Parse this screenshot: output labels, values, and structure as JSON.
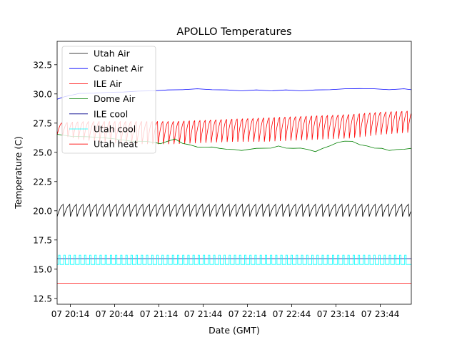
{
  "chart_data": {
    "type": "line",
    "title": "APOLLO Temperatures",
    "xlabel": "Date (GMT)",
    "ylabel": "Temperature (C)",
    "x_unit": "minutes since 07 20:00 GMT",
    "xlim": [
      5,
      245
    ],
    "ylim": [
      12.0,
      34.5
    ],
    "x_ticks": [
      {
        "value": 14,
        "label": "07 20:14"
      },
      {
        "value": 44,
        "label": "07 20:44"
      },
      {
        "value": 74,
        "label": "07 21:14"
      },
      {
        "value": 104,
        "label": "07 21:44"
      },
      {
        "value": 134,
        "label": "07 22:14"
      },
      {
        "value": 164,
        "label": "07 22:44"
      },
      {
        "value": 194,
        "label": "07 23:14"
      },
      {
        "value": 224,
        "label": "07 23:44"
      }
    ],
    "y_ticks": [
      {
        "value": 12.5,
        "label": "12.5"
      },
      {
        "value": 15.0,
        "label": "15.0"
      },
      {
        "value": 17.5,
        "label": "17.5"
      },
      {
        "value": 20.0,
        "label": "20.0"
      },
      {
        "value": 22.5,
        "label": "22.5"
      },
      {
        "value": 25.0,
        "label": "25.0"
      },
      {
        "value": 27.5,
        "label": "27.5"
      },
      {
        "value": 30.0,
        "label": "30.0"
      },
      {
        "value": 32.5,
        "label": "32.5"
      }
    ],
    "grid": false,
    "legend_position": "top-left",
    "series": [
      {
        "name": "Utah Air",
        "color": "#000000",
        "pattern": "sawtooth",
        "base": 20.5,
        "drop": 1.0,
        "period_min": 4.5,
        "x_start": 5,
        "x_end": 245
      },
      {
        "name": "Cabinet Air",
        "color": "#0000ff",
        "pattern": "points",
        "x": [
          5,
          10,
          20,
          30,
          40,
          50,
          60,
          70,
          80,
          90,
          100,
          110,
          120,
          130,
          140,
          150,
          160,
          170,
          180,
          190,
          200,
          210,
          220,
          230,
          240,
          245
        ],
        "y": [
          29.5,
          29.8,
          30.0,
          30.1,
          30.1,
          30.2,
          30.2,
          30.3,
          30.3,
          30.4,
          30.4,
          30.4,
          30.3,
          30.3,
          30.3,
          30.3,
          30.3,
          30.3,
          30.3,
          30.4,
          30.4,
          30.5,
          30.4,
          30.4,
          30.4,
          30.4
        ]
      },
      {
        "name": "ILE Air",
        "color": "#ff0000",
        "pattern": "sawtooth",
        "x": [
          5,
          20,
          40,
          60,
          80,
          100,
          120,
          140,
          160,
          180,
          200,
          220,
          240,
          245
        ],
        "base": [
          27.5,
          27.6,
          27.6,
          27.6,
          27.6,
          27.7,
          27.8,
          27.9,
          28.0,
          28.1,
          28.2,
          28.4,
          28.5,
          28.6
        ],
        "drop": [
          1.0,
          1.5,
          1.8,
          1.9,
          1.9,
          1.9,
          1.9,
          2.0,
          2.0,
          2.0,
          2.0,
          1.9,
          1.8,
          1.8
        ],
        "period_min": 3.6,
        "x_start": 5,
        "x_end": 245
      },
      {
        "name": "Dome Air",
        "color": "#008000",
        "pattern": "points",
        "x": [
          5,
          15,
          25,
          35,
          45,
          55,
          65,
          70,
          75,
          80,
          85,
          90,
          95,
          100,
          105,
          110,
          115,
          120,
          125,
          130,
          140,
          150,
          155,
          160,
          165,
          170,
          175,
          180,
          185,
          190,
          195,
          200,
          205,
          210,
          215,
          220,
          225,
          230,
          235,
          240,
          245
        ],
        "y": [
          26.5,
          26.4,
          26.3,
          26.3,
          26.1,
          26.0,
          25.9,
          25.9,
          25.7,
          26.0,
          26.1,
          25.8,
          25.6,
          25.5,
          25.4,
          25.5,
          25.3,
          25.3,
          25.2,
          25.2,
          25.3,
          25.4,
          25.5,
          25.4,
          25.3,
          25.4,
          25.2,
          25.1,
          25.3,
          25.6,
          25.8,
          26.0,
          25.9,
          25.7,
          25.5,
          25.4,
          25.3,
          25.2,
          25.2,
          25.3,
          25.3
        ]
      },
      {
        "name": "ILE cool",
        "color": "#00008b",
        "pattern": "constant",
        "value": 15.9,
        "x_start": 5,
        "x_end": 245
      },
      {
        "name": "Utah cool",
        "color": "#00ffff",
        "pattern": "pulses",
        "base": 15.4,
        "high": 16.2,
        "period_min": 3.5,
        "width_min": 1.0,
        "x_start": 5,
        "x_end": 245
      },
      {
        "name": "Utah heat",
        "color": "#ff0000",
        "pattern": "constant",
        "value": 13.8,
        "x_start": 5,
        "x_end": 245
      }
    ]
  }
}
